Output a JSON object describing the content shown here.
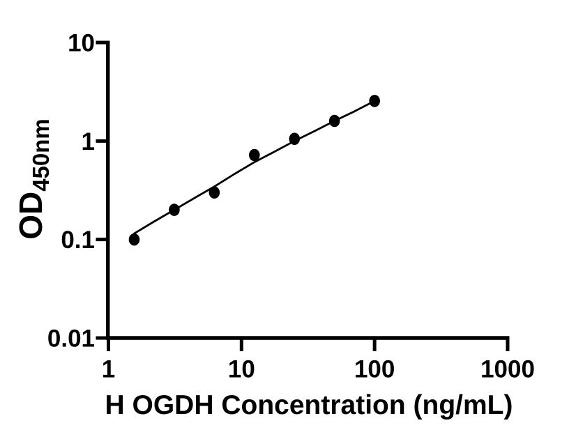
{
  "figure": {
    "background": "#ffffff",
    "ink_color": "#000000"
  },
  "chart_data": {
    "type": "scatter",
    "title": "",
    "xlabel": "H OGDH Concentration (ng/mL)",
    "ylabel_main": "OD",
    "ylabel_sub": "450nm",
    "x_scale": "log",
    "y_scale": "log",
    "xlim": [
      1,
      1000
    ],
    "ylim": [
      0.01,
      10
    ],
    "grid": false,
    "legend": "none",
    "x_ticks": [
      {
        "value": 1,
        "label": "1"
      },
      {
        "value": 10,
        "label": "10"
      },
      {
        "value": 100,
        "label": "100"
      },
      {
        "value": 1000,
        "label": "1000"
      }
    ],
    "y_ticks": [
      {
        "value": 10,
        "label": "10"
      },
      {
        "value": 1,
        "label": "1"
      },
      {
        "value": 0.1,
        "label": "0.1"
      },
      {
        "value": 0.01,
        "label": "0.01"
      }
    ],
    "series": [
      {
        "name": "standard-points",
        "type": "scatter",
        "marker": "filled-circle",
        "color": "#000000",
        "x": [
          1.5625,
          3.125,
          6.25,
          12.5,
          25,
          50,
          100
        ],
        "y": [
          0.1,
          0.2,
          0.3,
          0.72,
          1.05,
          1.6,
          2.55
        ]
      },
      {
        "name": "fit-curve",
        "type": "line",
        "color": "#000000",
        "x": [
          1.5625,
          2.2,
          3.125,
          4.4,
          6.25,
          8.8,
          12.5,
          17.7,
          25,
          35.4,
          50,
          70.7,
          100
        ],
        "y": [
          0.115,
          0.152,
          0.2,
          0.262,
          0.345,
          0.46,
          0.61,
          0.78,
          1.0,
          1.26,
          1.6,
          2.0,
          2.55
        ]
      }
    ]
  }
}
